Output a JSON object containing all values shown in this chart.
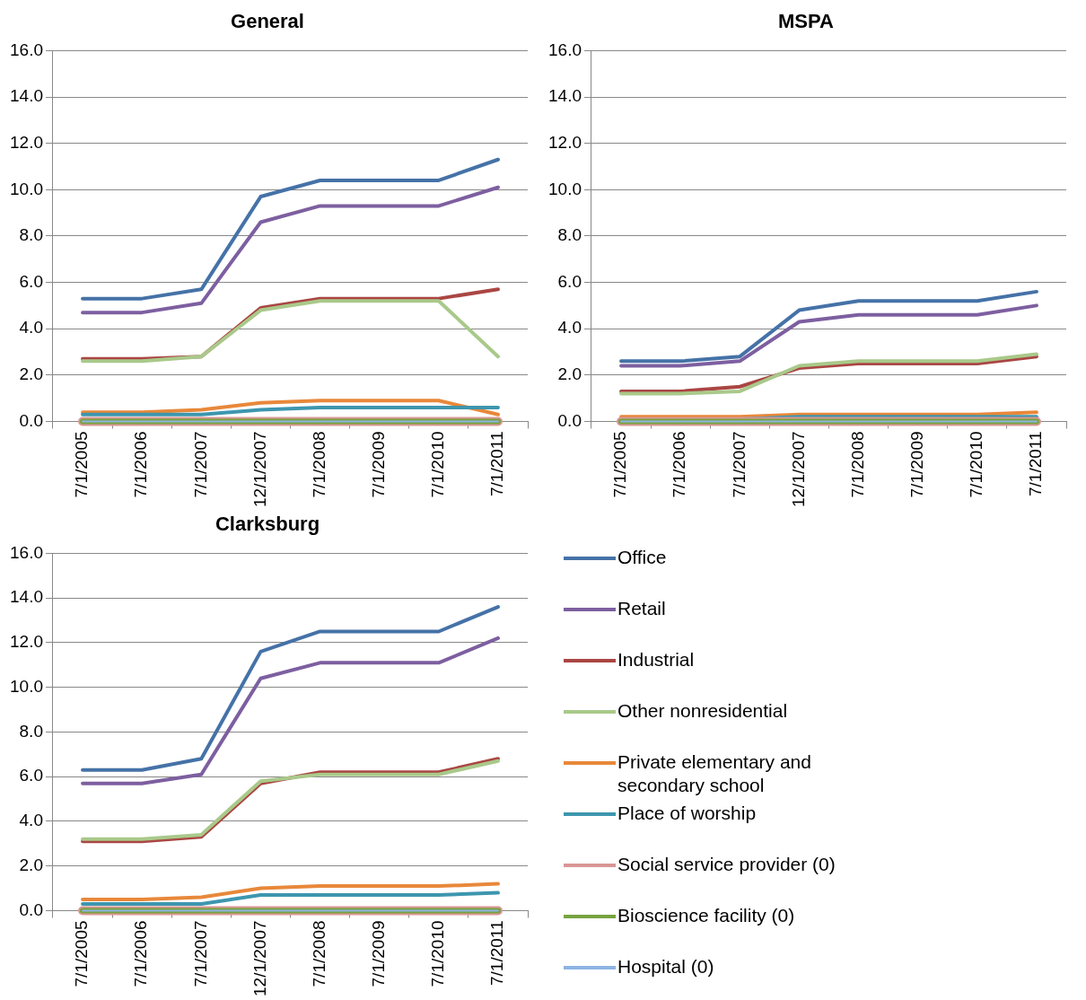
{
  "chart_data": [
    {
      "type": "line",
      "title": "General",
      "categories": [
        "7/1/2005",
        "7/1/2006",
        "7/1/2007",
        "12/1/2007",
        "7/1/2008",
        "7/1/2009",
        "7/1/2010",
        "7/1/2011"
      ],
      "ylim": [
        0,
        16
      ],
      "yticks": [
        {
          "value": 0,
          "label": "0.0"
        },
        {
          "value": 2,
          "label": "2.0"
        },
        {
          "value": 4,
          "label": "4.0"
        },
        {
          "value": 6,
          "label": "6.0"
        },
        {
          "value": 8,
          "label": "8.0"
        },
        {
          "value": 10,
          "label": "10.0"
        },
        {
          "value": 12,
          "label": "12.0"
        },
        {
          "value": 14,
          "label": "14.0"
        },
        {
          "value": 16,
          "label": "16.0"
        }
      ],
      "grid": "y",
      "series": [
        {
          "color": "#4572a7",
          "values": [
            5.3,
            5.3,
            5.7,
            9.7,
            10.4,
            10.4,
            10.4,
            11.3
          ]
        },
        {
          "color": "#7d5fa0",
          "values": [
            4.7,
            4.7,
            5.1,
            8.6,
            9.3,
            9.3,
            9.3,
            10.1
          ]
        },
        {
          "color": "#aa4643",
          "values": [
            2.7,
            2.7,
            2.8,
            4.9,
            5.3,
            5.3,
            5.3,
            5.7
          ]
        },
        {
          "color": "#a9c98a",
          "values": [
            2.6,
            2.6,
            2.8,
            4.8,
            5.2,
            5.2,
            5.2,
            2.8
          ]
        },
        {
          "color": "#e8883a",
          "values": [
            0.4,
            0.4,
            0.5,
            0.8,
            0.9,
            0.9,
            0.9,
            0.3
          ]
        },
        {
          "color": "#3d96ae",
          "values": [
            0.3,
            0.3,
            0.3,
            0.5,
            0.6,
            0.6,
            0.6,
            0.6
          ]
        },
        {
          "color": "#d99694",
          "values": [
            0,
            0,
            0,
            0,
            0,
            0,
            0,
            0
          ]
        },
        {
          "color": "#77a33f",
          "values": [
            0,
            0,
            0,
            0,
            0,
            0,
            0,
            0
          ]
        },
        {
          "color": "#8eb4e3",
          "values": [
            0,
            0,
            0,
            0,
            0,
            0,
            0,
            0
          ]
        }
      ]
    },
    {
      "type": "line",
      "title": "MSPA",
      "categories": [
        "7/1/2005",
        "7/1/2006",
        "7/1/2007",
        "12/1/2007",
        "7/1/2008",
        "7/1/2009",
        "7/1/2010",
        "7/1/2011"
      ],
      "ylim": [
        0,
        16
      ],
      "yticks": [
        {
          "value": 0,
          "label": "0.0"
        },
        {
          "value": 2,
          "label": "2.0"
        },
        {
          "value": 4,
          "label": "4.0"
        },
        {
          "value": 6,
          "label": "6.0"
        },
        {
          "value": 8,
          "label": "8.0"
        },
        {
          "value": 10,
          "label": "10.0"
        },
        {
          "value": 12,
          "label": "12.0"
        },
        {
          "value": 14,
          "label": "14.0"
        },
        {
          "value": 16,
          "label": "16.0"
        }
      ],
      "grid": "y",
      "series": [
        {
          "color": "#4572a7",
          "values": [
            2.6,
            2.6,
            2.8,
            4.8,
            5.2,
            5.2,
            5.2,
            5.6
          ]
        },
        {
          "color": "#7d5fa0",
          "values": [
            2.4,
            2.4,
            2.6,
            4.3,
            4.6,
            4.6,
            4.6,
            5.0
          ]
        },
        {
          "color": "#aa4643",
          "values": [
            1.3,
            1.3,
            1.5,
            2.3,
            2.5,
            2.5,
            2.5,
            2.8
          ]
        },
        {
          "color": "#a9c98a",
          "values": [
            1.2,
            1.2,
            1.3,
            2.4,
            2.6,
            2.6,
            2.6,
            2.9
          ]
        },
        {
          "color": "#e8883a",
          "values": [
            0.2,
            0.2,
            0.2,
            0.3,
            0.3,
            0.3,
            0.3,
            0.4
          ]
        },
        {
          "color": "#3d96ae",
          "values": [
            0.1,
            0.1,
            0.1,
            0.2,
            0.2,
            0.2,
            0.2,
            0.2
          ]
        },
        {
          "color": "#d99694",
          "values": [
            0,
            0,
            0,
            0,
            0,
            0,
            0,
            0
          ]
        },
        {
          "color": "#77a33f",
          "values": [
            0,
            0,
            0,
            0,
            0,
            0,
            0,
            0
          ]
        },
        {
          "color": "#8eb4e3",
          "values": [
            0,
            0,
            0,
            0,
            0,
            0,
            0,
            0
          ]
        }
      ]
    },
    {
      "type": "line",
      "title": "Clarksburg",
      "categories": [
        "7/1/2005",
        "7/1/2006",
        "7/1/2007",
        "12/1/2007",
        "7/1/2008",
        "7/1/2009",
        "7/1/2010",
        "7/1/2011"
      ],
      "ylim": [
        0,
        16
      ],
      "yticks": [
        {
          "value": 0,
          "label": "0.0"
        },
        {
          "value": 2,
          "label": "2.0"
        },
        {
          "value": 4,
          "label": "4.0"
        },
        {
          "value": 6,
          "label": "6.0"
        },
        {
          "value": 8,
          "label": "8.0"
        },
        {
          "value": 10,
          "label": "10.0"
        },
        {
          "value": 12,
          "label": "12.0"
        },
        {
          "value": 14,
          "label": "14.0"
        },
        {
          "value": 16,
          "label": "16.0"
        }
      ],
      "grid": "y",
      "legend": "right",
      "series": [
        {
          "name": "Office",
          "color": "#4572a7",
          "values": [
            6.3,
            6.3,
            6.8,
            11.6,
            12.5,
            12.5,
            12.5,
            13.6
          ]
        },
        {
          "name": "Retail",
          "color": "#7d5fa0",
          "values": [
            5.7,
            5.7,
            6.1,
            10.4,
            11.1,
            11.1,
            11.1,
            12.2
          ]
        },
        {
          "name": "Industrial",
          "color": "#aa4643",
          "values": [
            3.1,
            3.1,
            3.3,
            5.7,
            6.2,
            6.2,
            6.2,
            6.8
          ]
        },
        {
          "name": "Other nonresidential",
          "color": "#a9c98a",
          "values": [
            3.2,
            3.2,
            3.4,
            5.8,
            6.1,
            6.1,
            6.1,
            6.7
          ]
        },
        {
          "name": "Private elementary and secondary school",
          "color": "#e8883a",
          "values": [
            0.5,
            0.5,
            0.6,
            1.0,
            1.1,
            1.1,
            1.1,
            1.2
          ]
        },
        {
          "name": "Place of worship",
          "color": "#3d96ae",
          "values": [
            0.3,
            0.3,
            0.3,
            0.7,
            0.7,
            0.7,
            0.7,
            0.8
          ]
        },
        {
          "name": "Social service provider (0)",
          "color": "#d99694",
          "values": [
            0,
            0,
            0,
            0,
            0,
            0,
            0,
            0
          ]
        },
        {
          "name": "Bioscience facility (0)",
          "color": "#77a33f",
          "values": [
            0,
            0,
            0,
            0,
            0,
            0,
            0,
            0
          ]
        },
        {
          "name": "Hospital (0)",
          "color": "#8eb4e3",
          "values": [
            0,
            0,
            0,
            0,
            0,
            0,
            0,
            0
          ]
        }
      ]
    }
  ]
}
